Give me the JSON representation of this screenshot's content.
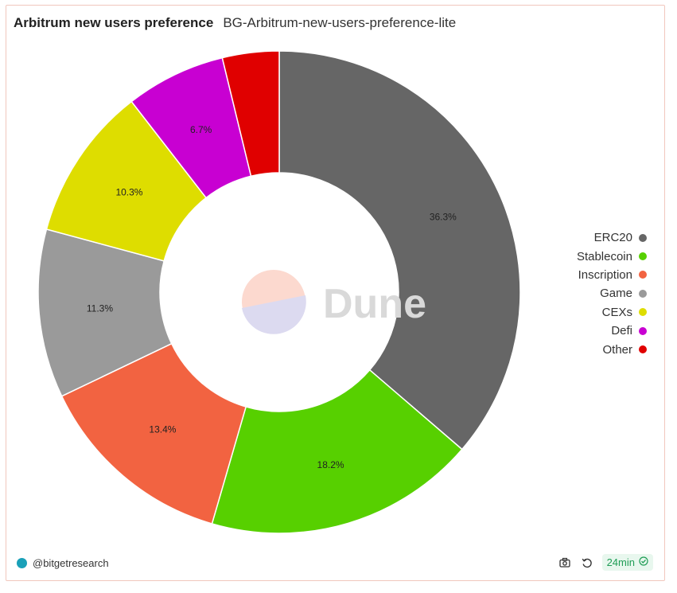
{
  "header": {
    "title": "Arbitrum new users preference",
    "subtitle": "BG-Arbitrum-new-users-preference-lite"
  },
  "watermark": {
    "text": "Dune"
  },
  "footer": {
    "author": "@bitgetresearch",
    "freshness": "24min",
    "icons": [
      "camera-icon",
      "refresh-icon",
      "check-circle-icon"
    ]
  },
  "chart_data": {
    "type": "pie",
    "donut": true,
    "categories": [
      "ERC20",
      "Stablecoin",
      "Inscription",
      "Game",
      "CEXs",
      "Defi",
      "Other"
    ],
    "values": [
      36.3,
      18.2,
      13.4,
      11.3,
      10.3,
      6.7,
      3.8
    ],
    "data_labels": [
      "36.3%",
      "18.2%",
      "13.4%",
      "11.3%",
      "10.3%",
      "6.7%",
      ""
    ],
    "colors": [
      "#666666",
      "#57d000",
      "#f26341",
      "#9a9a9a",
      "#dedd00",
      "#c800d2",
      "#e00000"
    ],
    "legend_position": "right"
  }
}
